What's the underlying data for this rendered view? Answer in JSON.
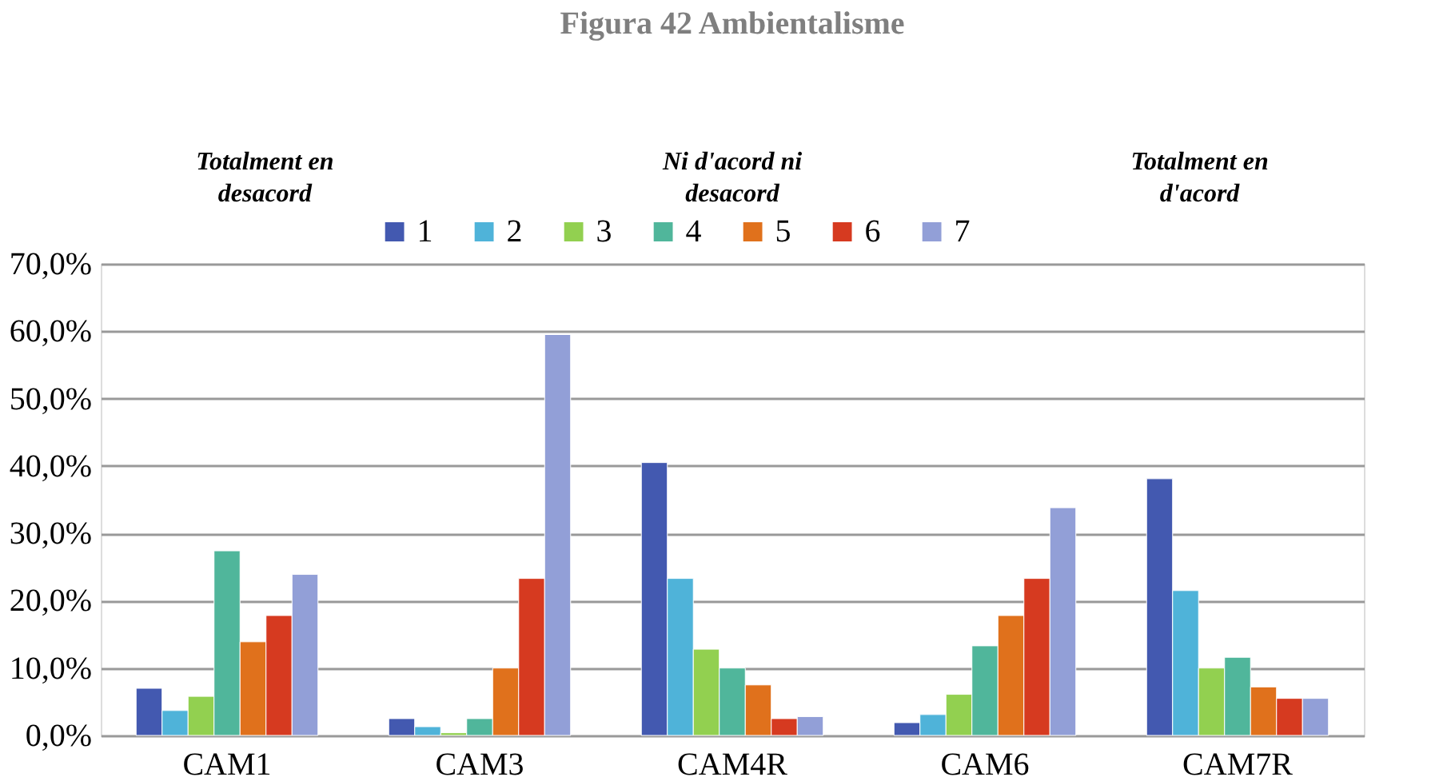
{
  "chart_data": {
    "type": "bar",
    "title": "Figura 42 Ambientalisme",
    "annotations": [
      "Totalment en\ndesacord",
      "Ni d'acord ni\ndesacord",
      "Totalment en\nd'acord"
    ],
    "categories": [
      "CAM1",
      "CAM3",
      "CAM4R",
      "CAM6",
      "CAM7R"
    ],
    "series": [
      {
        "name": "1",
        "color": "#4359b0",
        "values": [
          7.0,
          2.5,
          40.5,
          1.9,
          38.1
        ]
      },
      {
        "name": "2",
        "color": "#4fb3d9",
        "values": [
          3.7,
          1.3,
          23.3,
          3.1,
          21.5
        ]
      },
      {
        "name": "3",
        "color": "#92d050",
        "values": [
          5.8,
          0.4,
          12.8,
          6.1,
          10.0
        ]
      },
      {
        "name": "4",
        "color": "#50b69b",
        "values": [
          27.4,
          2.5,
          10.0,
          13.3,
          11.6
        ]
      },
      {
        "name": "5",
        "color": "#e0711c",
        "values": [
          13.9,
          10.0,
          7.5,
          17.8,
          7.2
        ]
      },
      {
        "name": "6",
        "color": "#d63a20",
        "values": [
          17.8,
          23.3,
          2.5,
          23.3,
          5.5
        ]
      },
      {
        "name": "7",
        "color": "#929fd7",
        "values": [
          23.9,
          59.5,
          2.8,
          33.8,
          5.5
        ]
      }
    ],
    "ylim": [
      0,
      70
    ],
    "yticks": [
      {
        "value": 0,
        "label": "0,0%"
      },
      {
        "value": 10,
        "label": "10,0%"
      },
      {
        "value": 20,
        "label": "20,0%"
      },
      {
        "value": 30,
        "label": "30,0%"
      },
      {
        "value": 40,
        "label": "40,0%"
      },
      {
        "value": 50,
        "label": "50,0%"
      },
      {
        "value": 60,
        "label": "60,0%"
      },
      {
        "value": 70,
        "label": "70,0%"
      }
    ],
    "grid": "y",
    "legend": "top"
  }
}
